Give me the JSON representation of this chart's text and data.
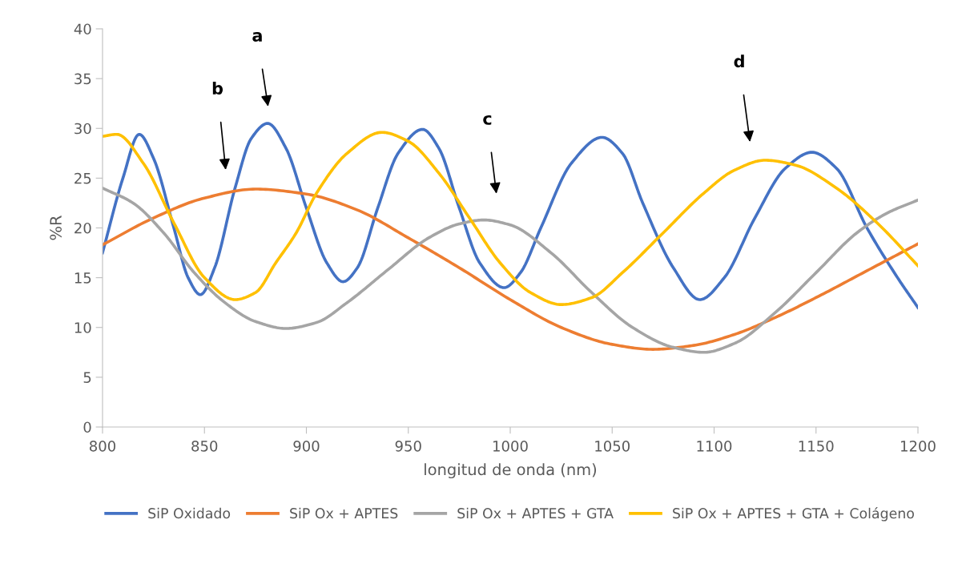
{
  "chart_data": {
    "type": "line",
    "xlabel": "longitud de onda (nm)",
    "ylabel": "%R",
    "xlim": [
      800,
      1200
    ],
    "xticks": [
      800,
      850,
      900,
      950,
      1000,
      1050,
      1100,
      1150,
      1200
    ],
    "ylim": [
      0,
      40
    ],
    "yticks": [
      0,
      5,
      10,
      15,
      20,
      25,
      30,
      35,
      40
    ],
    "grid": false,
    "legend": "bottom",
    "marker": "none",
    "line_style": "solid",
    "series": [
      {
        "name": "SiP Oxidado",
        "color": "#4472c4",
        "x": [
          800,
          810,
          818,
          825,
          835,
          842,
          848,
          855,
          865,
          873,
          881,
          890,
          900,
          910,
          918,
          925,
          935,
          945,
          957,
          965,
          975,
          985,
          997,
          1005,
          1015,
          1030,
          1045,
          1055,
          1065,
          1080,
          1093,
          1105,
          1120,
          1135,
          1148,
          1160,
          1175,
          1190,
          1200
        ],
        "values": [
          17.5,
          25,
          29.4,
          27,
          20,
          15,
          13.3,
          16,
          24,
          29,
          30.5,
          28,
          22,
          16.5,
          14.6,
          16,
          22,
          27.5,
          29.9,
          28,
          22,
          16.5,
          14,
          15.5,
          20,
          26.5,
          29.1,
          27.5,
          22.5,
          16,
          12.8,
          15,
          21,
          26,
          27.6,
          26,
          20,
          15,
          12
        ]
      },
      {
        "name": "SiP Ox + APTES",
        "color": "#ed7d31",
        "x": [
          800,
          825,
          850,
          875,
          900,
          925,
          950,
          975,
          1000,
          1025,
          1050,
          1070,
          1090,
          1110,
          1130,
          1150,
          1175,
          1200
        ],
        "values": [
          18.3,
          21,
          23,
          23.9,
          23.4,
          21.8,
          19,
          16,
          12.8,
          10,
          8.3,
          7.8,
          8.2,
          9.3,
          11,
          13,
          15.7,
          18.4
        ]
      },
      {
        "name": "SiP Ox + APTES + GTA",
        "color": "#a5a5a5",
        "x": [
          800,
          815,
          830,
          845,
          860,
          875,
          890,
          905,
          920,
          940,
          960,
          975,
          987,
          1000,
          1020,
          1040,
          1060,
          1080,
          1095,
          1110,
          1130,
          1150,
          1170,
          1185,
          1200
        ],
        "values": [
          24,
          22.5,
          19.5,
          15.5,
          12.5,
          10.6,
          9.9,
          10.5,
          12.5,
          15.8,
          19,
          20.4,
          20.8,
          20.3,
          17.5,
          13.5,
          10,
          8,
          7.5,
          8.4,
          11.5,
          15.5,
          19.5,
          21.5,
          22.8
        ]
      },
      {
        "name": "SiP Ox + APTES + GTA + Colágeno",
        "color": "#ffc000",
        "x": [
          800,
          807,
          820,
          835,
          850,
          865,
          875,
          885,
          895,
          905,
          920,
          937,
          950,
          965,
          980,
          995,
          1010,
          1025,
          1040,
          1055,
          1075,
          1095,
          1110,
          1125,
          1140,
          1160,
          1180,
          1200
        ],
        "values": [
          29.2,
          29.4,
          26.5,
          20.5,
          15,
          12.8,
          13.5,
          16.5,
          19.5,
          23.5,
          27.5,
          29.6,
          28.7,
          25.5,
          21,
          16.5,
          13.5,
          12.3,
          13,
          15.5,
          19.5,
          23.5,
          25.8,
          26.8,
          26.3,
          24,
          20.5,
          16.2
        ]
      }
    ],
    "annotations": [
      "a",
      "b",
      "c",
      "d"
    ]
  }
}
